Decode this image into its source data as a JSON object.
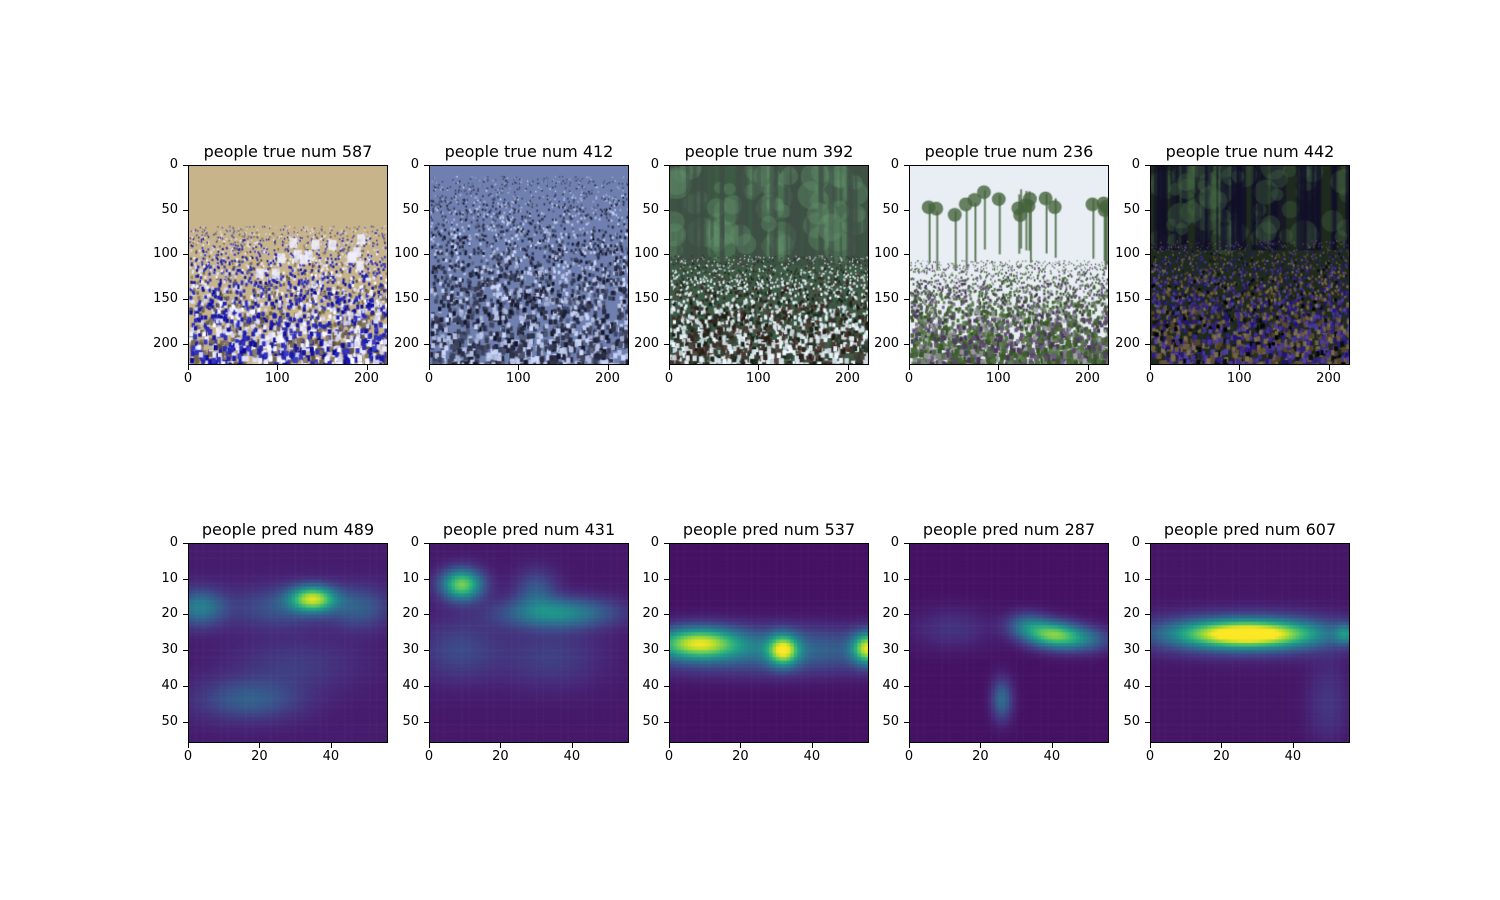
{
  "chart_data": [
    {
      "type": "image",
      "title": "people true num 587",
      "xlim": [
        0,
        224
      ],
      "ylim": [
        224,
        0
      ],
      "xticks": [
        "0",
        "100",
        "200"
      ],
      "yticks": [
        "0",
        "50",
        "100",
        "150",
        "200"
      ],
      "scene": "stadium",
      "colors": [
        "#c8b48a",
        "#2424b0",
        "#e6e6ff"
      ]
    },
    {
      "type": "image",
      "title": "people true num 412",
      "xlim": [
        0,
        224
      ],
      "ylim": [
        224,
        0
      ],
      "xticks": [
        "0",
        "100",
        "200"
      ],
      "yticks": [
        "0",
        "50",
        "100",
        "150",
        "200"
      ],
      "scene": "dense-crowd",
      "colors": [
        "#6e7fb0",
        "#2b2e45",
        "#b8c3e6"
      ]
    },
    {
      "type": "image",
      "title": "people true num 392",
      "xlim": [
        0,
        224
      ],
      "ylim": [
        224,
        0
      ],
      "xticks": [
        "0",
        "100",
        "200"
      ],
      "yticks": [
        "0",
        "50",
        "100",
        "150",
        "200"
      ],
      "scene": "forest-crowd",
      "colors": [
        "#3c5a44",
        "#d8e4ea",
        "#40302a"
      ]
    },
    {
      "type": "image",
      "title": "people true num 236",
      "xlim": [
        0,
        224
      ],
      "ylim": [
        224,
        0
      ],
      "xticks": [
        "0",
        "100",
        "200"
      ],
      "yticks": [
        "0",
        "50",
        "100",
        "150",
        "200"
      ],
      "scene": "street-crowd",
      "colors": [
        "#e8eef4",
        "#4a6a3a",
        "#5a4a6a"
      ]
    },
    {
      "type": "image",
      "title": "people true num 442",
      "xlim": [
        0,
        224
      ],
      "ylim": [
        224,
        0
      ],
      "xticks": [
        "0",
        "100",
        "200"
      ],
      "yticks": [
        "0",
        "50",
        "100",
        "150",
        "200"
      ],
      "scene": "night-crowd",
      "colors": [
        "#1e2a1e",
        "#3a2a8a",
        "#6a5a3a"
      ]
    },
    {
      "type": "heatmap",
      "title": "people pred num 489",
      "xlim": [
        0,
        56
      ],
      "ylim": [
        56,
        0
      ],
      "xticks": [
        "0",
        "20",
        "40"
      ],
      "yticks": [
        "0",
        "10",
        "20",
        "30",
        "40",
        "50"
      ],
      "colormap": "viridis",
      "base": 0.08,
      "blobs": [
        {
          "x": 35,
          "y": 15.5,
          "sx": 4.5,
          "sy": 2.5,
          "a": 0.78
        },
        {
          "x": 25,
          "y": 18,
          "sx": 9,
          "sy": 4,
          "a": 0.18
        },
        {
          "x": 3,
          "y": 18,
          "sx": 5,
          "sy": 3.5,
          "a": 0.35
        },
        {
          "x": 48,
          "y": 18,
          "sx": 6,
          "sy": 4,
          "a": 0.22
        },
        {
          "x": 17,
          "y": 44,
          "sx": 10,
          "sy": 4,
          "a": 0.22
        },
        {
          "x": 30,
          "y": 34,
          "sx": 12,
          "sy": 5,
          "a": 0.1
        }
      ]
    },
    {
      "type": "heatmap",
      "title": "people pred num 431",
      "xlim": [
        0,
        56
      ],
      "ylim": [
        56,
        0
      ],
      "xticks": [
        "0",
        "20",
        "40"
      ],
      "yticks": [
        "0",
        "10",
        "20",
        "30",
        "40",
        "50"
      ],
      "colormap": "viridis",
      "base": 0.07,
      "blobs": [
        {
          "x": 9,
          "y": 11.5,
          "sx": 4,
          "sy": 3,
          "a": 0.72
        },
        {
          "x": 36,
          "y": 19.5,
          "sx": 11,
          "sy": 3,
          "a": 0.42
        },
        {
          "x": 30,
          "y": 13,
          "sx": 4,
          "sy": 4,
          "a": 0.2
        },
        {
          "x": 8,
          "y": 30,
          "sx": 8,
          "sy": 6,
          "a": 0.15
        },
        {
          "x": 34,
          "y": 32,
          "sx": 10,
          "sy": 6,
          "a": 0.12
        }
      ]
    },
    {
      "type": "heatmap",
      "title": "people pred num 537",
      "xlim": [
        0,
        56
      ],
      "ylim": [
        56,
        0
      ],
      "xticks": [
        "0",
        "20",
        "40"
      ],
      "yticks": [
        "0",
        "10",
        "20",
        "30",
        "40",
        "50"
      ],
      "colormap": "viridis",
      "base": 0.05,
      "blobs": [
        {
          "x": 8,
          "y": 28,
          "sx": 8,
          "sy": 3,
          "a": 0.72
        },
        {
          "x": 32,
          "y": 30,
          "sx": 3,
          "sy": 3,
          "a": 0.72
        },
        {
          "x": 56,
          "y": 29.5,
          "sx": 3,
          "sy": 3,
          "a": 0.75
        },
        {
          "x": 28,
          "y": 30,
          "sx": 28,
          "sy": 4.5,
          "a": 0.3
        }
      ]
    },
    {
      "type": "heatmap",
      "title": "people pred num 287",
      "xlim": [
        0,
        56
      ],
      "ylim": [
        56,
        0
      ],
      "xticks": [
        "0",
        "20",
        "40"
      ],
      "yticks": [
        "0",
        "10",
        "20",
        "30",
        "40",
        "50"
      ],
      "colormap": "viridis",
      "base": 0.05,
      "blobs": [
        {
          "x": 40,
          "y": 25.5,
          "sx": 5,
          "sy": 2.5,
          "a": 0.62
        },
        {
          "x": 48,
          "y": 27,
          "sx": 6,
          "sy": 2.5,
          "a": 0.35
        },
        {
          "x": 33,
          "y": 23,
          "sx": 4,
          "sy": 2.5,
          "a": 0.3
        },
        {
          "x": 26,
          "y": 44,
          "sx": 2,
          "sy": 4,
          "a": 0.3
        },
        {
          "x": 12,
          "y": 24,
          "sx": 8,
          "sy": 4,
          "a": 0.1
        }
      ]
    },
    {
      "type": "heatmap",
      "title": "people pred num 607",
      "xlim": [
        0,
        56
      ],
      "ylim": [
        56,
        0
      ],
      "xticks": [
        "0",
        "20",
        "40"
      ],
      "yticks": [
        "0",
        "10",
        "20",
        "30",
        "40",
        "50"
      ],
      "colormap": "viridis",
      "base": 0.06,
      "blobs": [
        {
          "x": 27,
          "y": 25.5,
          "sx": 13,
          "sy": 2.6,
          "a": 0.88
        },
        {
          "x": 27,
          "y": 25.5,
          "sx": 20,
          "sy": 4,
          "a": 0.28
        },
        {
          "x": 55,
          "y": 25.5,
          "sx": 2,
          "sy": 2,
          "a": 0.3
        },
        {
          "x": 50,
          "y": 45,
          "sx": 4,
          "sy": 8,
          "a": 0.1
        }
      ]
    }
  ]
}
